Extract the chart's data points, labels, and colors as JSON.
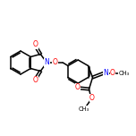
{
  "bg_color": "#ffffff",
  "bond_color": "#000000",
  "atom_colors": {
    "O": "#ff0000",
    "N": "#0000ff"
  },
  "figsize": [
    1.52,
    1.52
  ],
  "dpi": 100,
  "lw": 1.1,
  "fontsize": 5.5
}
